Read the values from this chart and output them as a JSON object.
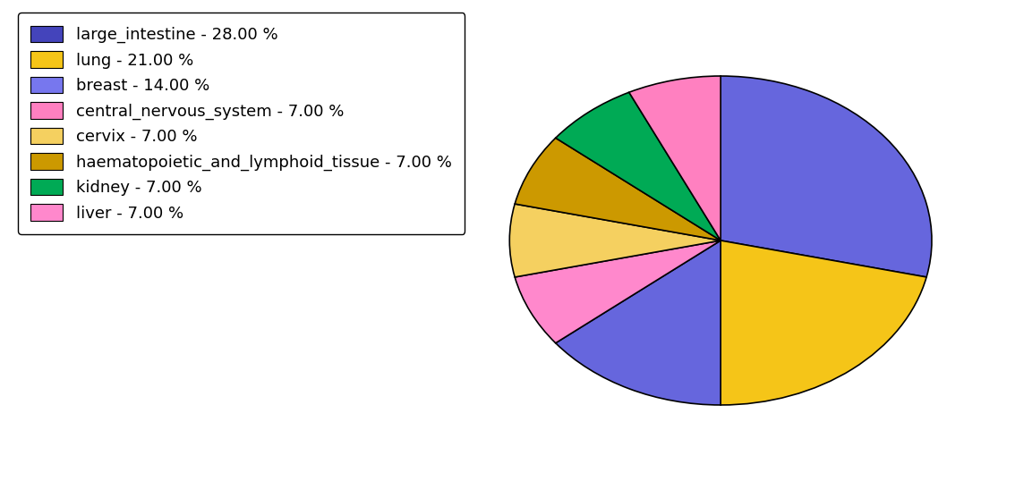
{
  "labels": [
    "large_intestine",
    "lung",
    "breast",
    "central_nervous_system",
    "cervix",
    "haematopoietic_and_lymphoid_tissue",
    "kidney",
    "liver"
  ],
  "values": [
    28.0,
    21.0,
    14.0,
    7.0,
    7.0,
    7.0,
    7.0,
    7.0
  ],
  "pie_order_values": [
    28.0,
    21.0,
    14.0,
    7.0,
    7.0,
    7.0,
    7.0,
    7.0
  ],
  "pie_order_colors": [
    "#6666dd",
    "#f5c518",
    "#6666dd",
    "#ff88cc",
    "#f5d060",
    "#cc9900",
    "#00aa55",
    "#ff80c0"
  ],
  "legend_colors": [
    "#4444bb",
    "#f5c518",
    "#7777ee",
    "#ff80c0",
    "#f5d060",
    "#cc9900",
    "#00aa55",
    "#ff88cc"
  ],
  "legend_labels": [
    "large_intestine - 28.00 %",
    "lung - 21.00 %",
    "breast - 14.00 %",
    "central_nervous_system - 7.00 %",
    "cervix - 7.00 %",
    "haematopoietic_and_lymphoid_tissue - 7.00 %",
    "kidney - 7.00 %",
    "liver - 7.00 %"
  ],
  "startangle": 90,
  "figsize": [
    11.34,
    5.38
  ],
  "dpi": 100,
  "background_color": "#ffffff",
  "legend_fontsize": 13
}
